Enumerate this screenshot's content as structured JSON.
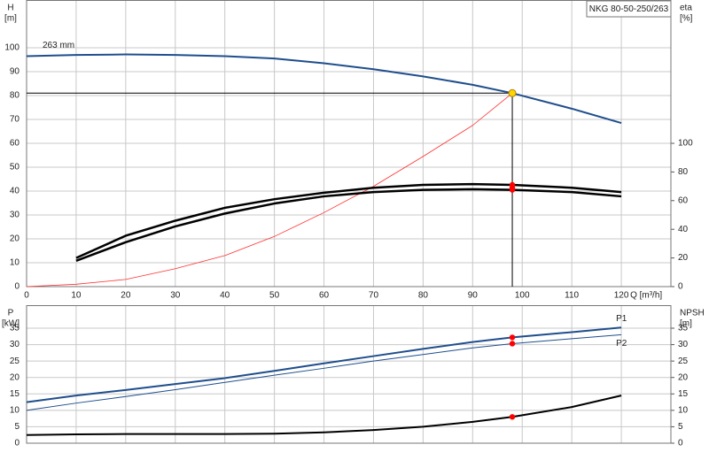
{
  "chart_data": [
    {
      "type": "line",
      "title": "NKG 80-50-250/263",
      "y_label": "H",
      "y_unit": "[m]",
      "y2_label": "eta",
      "y2_unit": "[%]",
      "x_label": "Q [m³/h]",
      "xlim": [
        0,
        130
      ],
      "xticks": [
        0,
        10,
        20,
        30,
        40,
        50,
        60,
        70,
        80,
        90,
        100,
        110,
        120
      ],
      "ylim": [
        0,
        120
      ],
      "yticks": [
        0,
        10,
        20,
        30,
        40,
        50,
        60,
        70,
        80,
        90,
        100
      ],
      "y2lim": [
        0,
        200
      ],
      "y2ticks": [
        0,
        20,
        40,
        60,
        80,
        100
      ],
      "grid": true,
      "show_xtick_labels": true,
      "series": [
        {
          "name": "263 mm",
          "label_at": "start",
          "color": "#1f4e8c",
          "width": 2,
          "x": [
            0,
            10,
            20,
            30,
            40,
            50,
            60,
            70,
            80,
            90,
            98,
            110,
            120
          ],
          "values": [
            96.5,
            97,
            97.2,
            97,
            96.5,
            95.5,
            93.5,
            91,
            88,
            84.5,
            81,
            74.5,
            68.5
          ]
        },
        {
          "color": "#ff3030",
          "width": 0.8,
          "x": [
            0,
            10,
            20,
            30,
            40,
            50,
            60,
            70,
            80,
            90,
            98
          ],
          "values": [
            0,
            1,
            3,
            7.5,
            13,
            21,
            31,
            42,
            54.5,
            67.5,
            81
          ]
        },
        {
          "color": "#000000",
          "width": 2.5,
          "axis": "y2",
          "x": [
            10,
            20,
            30,
            40,
            50,
            60,
            70,
            80,
            90,
            98,
            110,
            120
          ],
          "values": [
            20,
            35.5,
            46,
            55,
            61,
            65.5,
            69,
            71,
            71.5,
            71,
            69,
            66
          ]
        },
        {
          "color": "#000000",
          "width": 2.5,
          "axis": "y2",
          "x": [
            10,
            20,
            30,
            40,
            50,
            60,
            70,
            80,
            90,
            98,
            110,
            120
          ],
          "values": [
            18,
            31,
            42,
            51,
            58,
            63,
            66,
            67.5,
            68,
            67.5,
            66,
            63
          ]
        }
      ],
      "duty_point": {
        "x": 98,
        "y": 81,
        "color": "#ffd700"
      },
      "points": [
        {
          "x": 98,
          "y": 71,
          "axis": "y2",
          "color": "#ff0000"
        },
        {
          "x": 98,
          "y": 69,
          "axis": "y2",
          "color": "#ff0000"
        },
        {
          "x": 98,
          "y": 67.5,
          "axis": "y2",
          "color": "#ff0000"
        }
      ]
    },
    {
      "type": "line",
      "y_label": "P",
      "y_unit": "[kW]",
      "y2_label": "NPSH",
      "y2_unit": "[m]",
      "xlim": [
        0,
        130
      ],
      "xticks": [
        0,
        10,
        20,
        30,
        40,
        50,
        60,
        70,
        80,
        90,
        100,
        110,
        120
      ],
      "ylim": [
        0,
        42
      ],
      "yticks": [
        0,
        5,
        10,
        15,
        20,
        25,
        30,
        35
      ],
      "y2lim": [
        0,
        42
      ],
      "y2ticks": [
        0,
        5,
        10,
        15,
        20,
        25,
        30,
        35
      ],
      "grid": true,
      "show_xtick_labels": false,
      "series": [
        {
          "name": "P1",
          "label_at": "end",
          "color": "#1f4e8c",
          "width": 2,
          "x": [
            0,
            10,
            20,
            30,
            40,
            50,
            60,
            70,
            80,
            90,
            98,
            110,
            120
          ],
          "values": [
            12.5,
            14.5,
            16.2,
            18,
            19.8,
            22,
            24.3,
            26.5,
            28.7,
            30.8,
            32.2,
            33.8,
            35.2
          ]
        },
        {
          "name": "P2",
          "label_at": "end-below",
          "color": "#1f4e8c",
          "width": 1,
          "x": [
            0,
            10,
            20,
            30,
            40,
            50,
            60,
            70,
            80,
            90,
            98,
            110,
            120
          ],
          "values": [
            10,
            12.2,
            14.2,
            16.3,
            18.5,
            20.7,
            22.8,
            25,
            27,
            29,
            30.3,
            31.8,
            33
          ]
        },
        {
          "color": "#000000",
          "width": 2,
          "axis": "y2",
          "x": [
            0,
            10,
            20,
            30,
            40,
            50,
            60,
            70,
            80,
            90,
            98,
            110,
            120
          ],
          "values": [
            2.5,
            2.7,
            2.8,
            2.8,
            2.8,
            2.9,
            3.3,
            4,
            5,
            6.5,
            8,
            11,
            14.5
          ]
        }
      ],
      "points": [
        {
          "x": 98,
          "y": 32.2,
          "color": "#ff0000"
        },
        {
          "x": 98,
          "y": 30.3,
          "color": "#ff0000"
        },
        {
          "x": 98,
          "y": 8,
          "axis": "y2",
          "color": "#ff0000"
        }
      ]
    }
  ]
}
